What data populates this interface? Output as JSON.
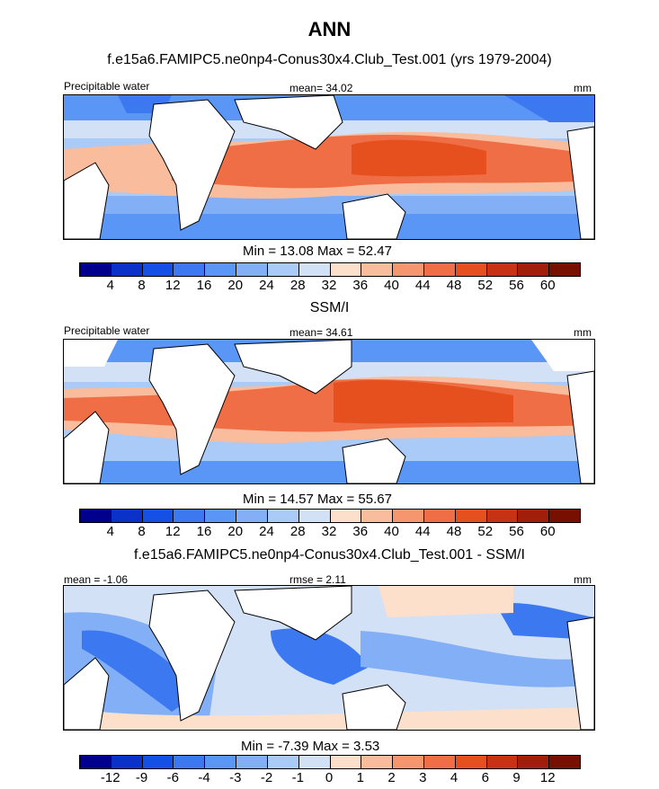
{
  "main_title": "ANN",
  "panels": [
    {
      "title": "f.e15a6.FAMIPC5.ne0np4-Conus30x4.Club_Test.001 (yrs 1979-2004)",
      "left_label": "Precipitable water",
      "center_label": "mean=  34.02",
      "right_label": "mm",
      "minmax": "Min =  13.08 Max =  52.47",
      "colorbar_labels": [
        "4",
        "8",
        "12",
        "16",
        "20",
        "24",
        "28",
        "32",
        "36",
        "40",
        "44",
        "48",
        "52",
        "56",
        "60"
      ],
      "colorbar_colors": [
        "#00008c",
        "#0a32c8",
        "#1450e6",
        "#3c78f0",
        "#5a96f5",
        "#82aff5",
        "#aacaf7",
        "#d2e1f5",
        "#fde0cc",
        "#f9bc9c",
        "#f5966e",
        "#f06e46",
        "#e6501e",
        "#c83214",
        "#a01e0a",
        "#781000"
      ]
    },
    {
      "title": "SSM/I",
      "left_label": "Precipitable water",
      "center_label": "mean=  34.61",
      "right_label": "mm",
      "minmax": "Min =  14.57 Max =  55.67",
      "colorbar_labels": [
        "4",
        "8",
        "12",
        "16",
        "20",
        "24",
        "28",
        "32",
        "36",
        "40",
        "44",
        "48",
        "52",
        "56",
        "60"
      ],
      "colorbar_colors": [
        "#00008c",
        "#0a32c8",
        "#1450e6",
        "#3c78f0",
        "#5a96f5",
        "#82aff5",
        "#aacaf7",
        "#d2e1f5",
        "#fde0cc",
        "#f9bc9c",
        "#f5966e",
        "#f06e46",
        "#e6501e",
        "#c83214",
        "#a01e0a",
        "#781000"
      ]
    },
    {
      "title": "f.e15a6.FAMIPC5.ne0np4-Conus30x4.Club_Test.001 - SSM/I",
      "left_label": "mean =  -1.06",
      "center_label": "rmse =   2.11",
      "right_label": "mm",
      "minmax": "Min =  -7.39 Max =   3.53",
      "colorbar_labels": [
        "-12",
        "-9",
        "-6",
        "-4",
        "-3",
        "-2",
        "-1",
        "0",
        "1",
        "2",
        "3",
        "4",
        "6",
        "9",
        "12"
      ],
      "colorbar_colors": [
        "#00008c",
        "#0a32c8",
        "#1450e6",
        "#3c78f0",
        "#5a96f5",
        "#82aff5",
        "#aacaf7",
        "#d2e1f5",
        "#fde0cc",
        "#f9bc9c",
        "#f5966e",
        "#f06e46",
        "#e6501e",
        "#c83214",
        "#a01e0a",
        "#781000"
      ]
    }
  ],
  "chart_data": [
    {
      "type": "heatmap",
      "title": "f.e15a6.FAMIPC5.ne0np4-Conus30x4.Club_Test.001 (yrs 1979-2004)",
      "variable": "Precipitable water",
      "units": "mm",
      "mean": 34.02,
      "min": 13.08,
      "max": 52.47,
      "levels": [
        4,
        8,
        12,
        16,
        20,
        24,
        28,
        32,
        36,
        40,
        44,
        48,
        52,
        56,
        60
      ]
    },
    {
      "type": "heatmap",
      "title": "SSM/I",
      "variable": "Precipitable water",
      "units": "mm",
      "mean": 34.61,
      "min": 14.57,
      "max": 55.67,
      "levels": [
        4,
        8,
        12,
        16,
        20,
        24,
        28,
        32,
        36,
        40,
        44,
        48,
        52,
        56,
        60
      ]
    },
    {
      "type": "heatmap",
      "title": "f.e15a6.FAMIPC5.ne0np4-Conus30x4.Club_Test.001 - SSM/I",
      "units": "mm",
      "mean": -1.06,
      "rmse": 2.11,
      "min": -7.39,
      "max": 3.53,
      "levels": [
        -12,
        -9,
        -6,
        -4,
        -3,
        -2,
        -1,
        0,
        1,
        2,
        3,
        4,
        6,
        9,
        12
      ]
    }
  ]
}
